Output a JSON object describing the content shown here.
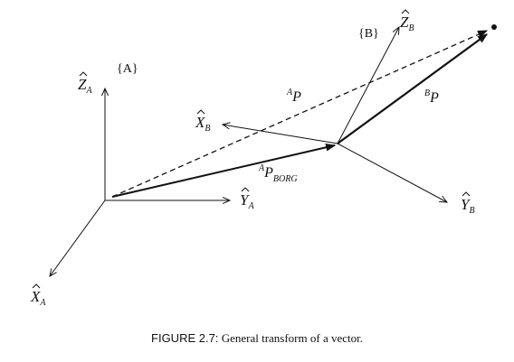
{
  "frames": {
    "frame_a": "{A}",
    "frame_b": "{B}"
  },
  "axes": {
    "za": {
      "hat": "Z",
      "sub": "A"
    },
    "ya": {
      "hat": "Y",
      "sub": "A"
    },
    "xa": {
      "hat": "X",
      "sub": "A"
    },
    "xb": {
      "hat": "X",
      "sub": "B"
    },
    "yb": {
      "hat": "Y",
      "sub": "B"
    },
    "zb": {
      "hat": "Z",
      "sub": "B"
    }
  },
  "vectors": {
    "ap": {
      "sup": "A",
      "main": "P"
    },
    "bp": {
      "sup": "B",
      "main": "P"
    },
    "aporg": {
      "sup": "A",
      "main": "P",
      "sub": "BORG"
    }
  },
  "caption": {
    "label": "FIGURE 2.7:",
    "text": " General transform of a vector."
  }
}
